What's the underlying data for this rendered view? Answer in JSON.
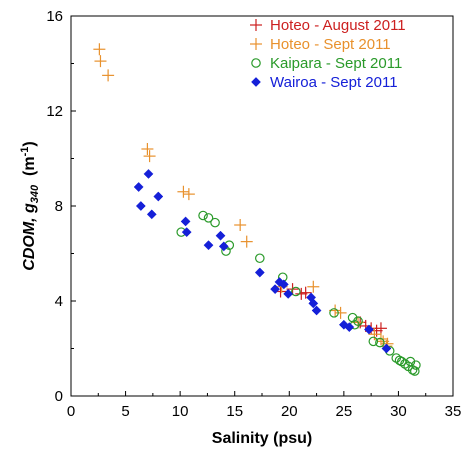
{
  "chart_data": {
    "type": "scatter",
    "xlabel": "Salinity (psu)",
    "ylabel": {
      "prefix": "CDOM, ",
      "var": "g",
      "sub": "340",
      "unit_open": "  (m",
      "unit_sup": "-1",
      "unit_close": ")"
    },
    "xlim": [
      0,
      35
    ],
    "ylim": [
      0,
      16
    ],
    "xticks": [
      "0",
      "5",
      "10",
      "15",
      "20",
      "25",
      "30",
      "35"
    ],
    "yticks": [
      "0",
      "4",
      "8",
      "12",
      "16"
    ],
    "grid": false,
    "legend_position": "top-right",
    "series": [
      {
        "name": "Hoteo - August 2011",
        "marker": "plus",
        "color": "#cc1f1f",
        "points": [
          [
            19.2,
            4.4
          ],
          [
            20.3,
            4.5
          ],
          [
            21.1,
            4.3
          ],
          [
            21.5,
            4.35
          ],
          [
            26.5,
            3.1
          ],
          [
            27.0,
            2.95
          ],
          [
            27.5,
            2.85
          ],
          [
            28.0,
            2.75
          ],
          [
            28.4,
            2.85
          ]
        ]
      },
      {
        "name": "Hoteo - Sept 2011",
        "marker": "plus",
        "color": "#e8912d",
        "points": [
          [
            2.6,
            14.6
          ],
          [
            2.7,
            14.1
          ],
          [
            3.4,
            13.5
          ],
          [
            7.0,
            10.4
          ],
          [
            7.2,
            10.1
          ],
          [
            10.3,
            8.6
          ],
          [
            10.8,
            8.5
          ],
          [
            15.5,
            7.2
          ],
          [
            16.1,
            6.5
          ],
          [
            19.3,
            4.6
          ],
          [
            22.2,
            4.6
          ],
          [
            24.2,
            3.6
          ],
          [
            24.7,
            3.5
          ],
          [
            26.3,
            3.1
          ],
          [
            27.8,
            2.6
          ],
          [
            28.4,
            2.4
          ],
          [
            28.6,
            2.3
          ],
          [
            28.9,
            2.1
          ],
          [
            29.0,
            2.2
          ]
        ]
      },
      {
        "name": "Kaipara - Sept 2011",
        "marker": "circle",
        "color": "#2a9a2a",
        "points": [
          [
            10.1,
            6.9
          ],
          [
            12.1,
            7.6
          ],
          [
            12.6,
            7.5
          ],
          [
            13.2,
            7.3
          ],
          [
            14.2,
            6.1
          ],
          [
            14.5,
            6.35
          ],
          [
            17.3,
            5.8
          ],
          [
            19.4,
            5.0
          ],
          [
            20.6,
            4.4
          ],
          [
            24.1,
            3.5
          ],
          [
            25.8,
            3.3
          ],
          [
            26.0,
            3.0
          ],
          [
            26.3,
            3.15
          ],
          [
            27.7,
            2.3
          ],
          [
            28.3,
            2.25
          ],
          [
            29.2,
            1.9
          ],
          [
            29.8,
            1.6
          ],
          [
            30.1,
            1.5
          ],
          [
            30.3,
            1.45
          ],
          [
            30.6,
            1.35
          ],
          [
            30.9,
            1.25
          ],
          [
            31.1,
            1.45
          ],
          [
            31.3,
            1.1
          ],
          [
            31.5,
            1.05
          ],
          [
            31.6,
            1.3
          ]
        ]
      },
      {
        "name": "Wairoa - Sept 2011",
        "marker": "diamond",
        "color": "#1520d8",
        "points": [
          [
            6.2,
            8.8
          ],
          [
            6.4,
            8.0
          ],
          [
            7.1,
            9.35
          ],
          [
            7.4,
            7.65
          ],
          [
            8.0,
            8.4
          ],
          [
            10.5,
            7.35
          ],
          [
            10.6,
            6.9
          ],
          [
            12.6,
            6.35
          ],
          [
            13.7,
            6.75
          ],
          [
            14.0,
            6.3
          ],
          [
            17.3,
            5.2
          ],
          [
            18.7,
            4.5
          ],
          [
            19.1,
            4.8
          ],
          [
            19.5,
            4.7
          ],
          [
            19.9,
            4.3
          ],
          [
            22.0,
            4.15
          ],
          [
            22.2,
            3.9
          ],
          [
            22.5,
            3.6
          ],
          [
            25.0,
            3.0
          ],
          [
            25.5,
            2.9
          ],
          [
            27.3,
            2.8
          ],
          [
            28.9,
            2.0
          ]
        ]
      }
    ]
  }
}
